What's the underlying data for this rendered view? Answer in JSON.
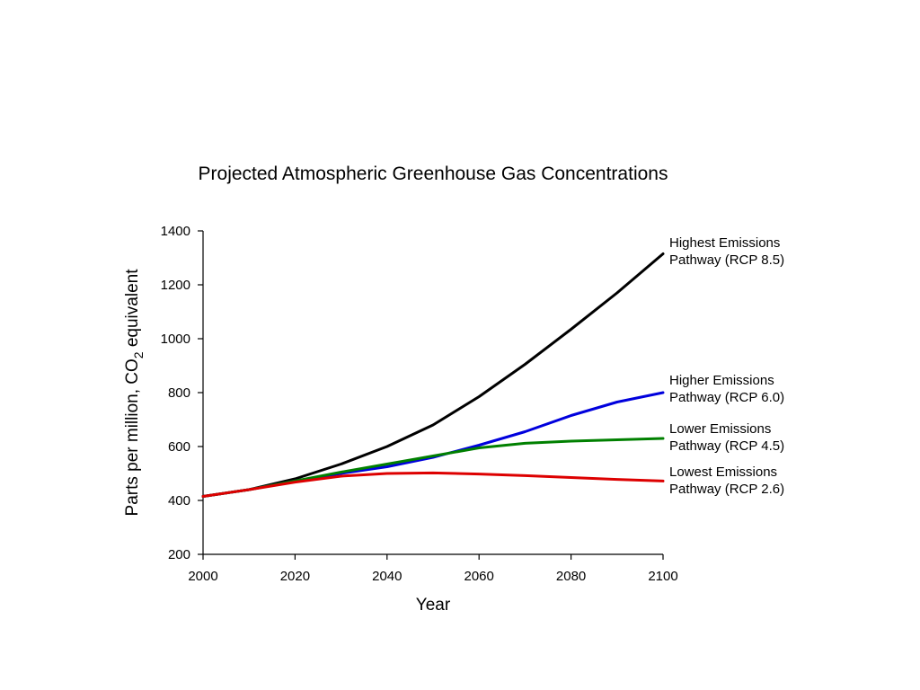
{
  "chart_data": {
    "type": "line",
    "title": "Projected Atmospheric Greenhouse Gas Concentrations",
    "xlabel": "Year",
    "ylabel": {
      "prefix": "Parts per million, CO",
      "subscript": "2",
      "suffix": " equivalent"
    },
    "xlim": [
      2000,
      2100
    ],
    "ylim": [
      200,
      1400
    ],
    "xticks": [
      2000,
      2020,
      2040,
      2060,
      2080,
      2100
    ],
    "yticks": [
      200,
      400,
      600,
      800,
      1000,
      1200,
      1400
    ],
    "grid": false,
    "legend": "inline-right",
    "x": [
      2000,
      2010,
      2020,
      2030,
      2040,
      2050,
      2060,
      2070,
      2080,
      2090,
      2100
    ],
    "series": [
      {
        "name_lines": [
          "Highest Emissions",
          "Pathway (RCP 8.5)"
        ],
        "color": "#000000",
        "values": [
          415,
          440,
          480,
          535,
          600,
          680,
          785,
          905,
          1035,
          1170,
          1315
        ]
      },
      {
        "name_lines": [
          "Higher Emissions",
          "Pathway (RCP 6.0)"
        ],
        "color": "#0000dd",
        "values": [
          415,
          440,
          472,
          500,
          525,
          560,
          605,
          655,
          715,
          765,
          800
        ]
      },
      {
        "name_lines": [
          "Lower Emissions",
          "Pathway (RCP 4.5)"
        ],
        "color": "#008000",
        "values": [
          415,
          440,
          472,
          505,
          535,
          565,
          595,
          612,
          620,
          625,
          630
        ]
      },
      {
        "name_lines": [
          "Lowest Emissions",
          "Pathway (RCP 2.6)"
        ],
        "color": "#dd0000",
        "values": [
          415,
          440,
          468,
          490,
          500,
          502,
          498,
          492,
          485,
          478,
          472
        ]
      }
    ]
  }
}
